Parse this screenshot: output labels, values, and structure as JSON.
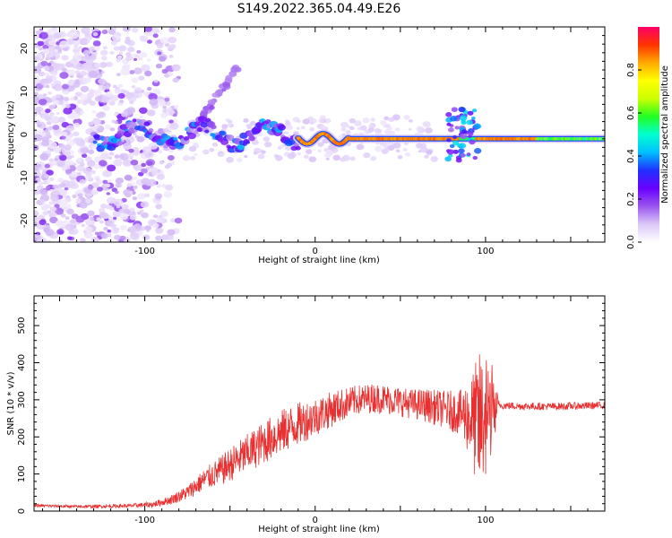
{
  "title": "S149.2022.365.04.49.E26",
  "chart_data": [
    {
      "type": "heatmap",
      "name": "spectrogram",
      "xlabel": "Height of straight line (km)",
      "ylabel": "Frequency (Hz)",
      "xlim": [
        -165,
        170
      ],
      "ylim": [
        -25,
        25
      ],
      "xticks": [
        -100,
        0,
        100
      ],
      "yticks": [
        -20,
        -10,
        0,
        10,
        20
      ],
      "xtick_labels": [
        "-100",
        "0",
        "100"
      ],
      "ytick_labels": [
        "-20",
        "-10",
        "0",
        "10",
        "20"
      ],
      "colorbar": {
        "label": "Normalized spectral amplitude",
        "range": [
          0,
          1
        ],
        "ticks": [
          0.0,
          0.2,
          0.4,
          0.6,
          0.8
        ],
        "tick_labels": [
          "0.0",
          "0.2",
          "0.4",
          "0.6",
          "0.8"
        ],
        "colors": [
          "#ffffff",
          "#dcc8f8",
          "#9a55ee",
          "#6a00ff",
          "#2030ff",
          "#00bfff",
          "#00ffd0",
          "#22ff22",
          "#ccff00",
          "#ffff00",
          "#ffaa00",
          "#ff3300",
          "#ff0066"
        ]
      },
      "features": [
        {
          "label": "carrier line",
          "x_range": [
            -10,
            170
          ],
          "frequency_hz": -1,
          "amplitude": 0.9
        },
        {
          "label": "scintillation region",
          "x_range": [
            -165,
            -20
          ],
          "frequency_spread_hz": [
            -25,
            25
          ]
        }
      ]
    },
    {
      "type": "line",
      "name": "snr",
      "xlabel": "Height of straight line (km)",
      "ylabel": "SNR (10 * v/v)",
      "xlim": [
        -165,
        170
      ],
      "ylim": [
        0,
        580
      ],
      "xticks": [
        -100,
        0,
        100
      ],
      "yticks": [
        0,
        100,
        200,
        300,
        400,
        500
      ],
      "xtick_labels": [
        "-100",
        "0",
        "100"
      ],
      "ytick_labels": [
        "0",
        "100",
        "200",
        "300",
        "400",
        "500"
      ],
      "color": "#e83030",
      "x": [
        -165,
        -140,
        -110,
        -95,
        -85,
        -75,
        -65,
        -55,
        -45,
        -35,
        -25,
        -15,
        -5,
        5,
        15,
        25,
        35,
        45,
        55,
        65,
        75,
        85,
        92,
        96,
        100,
        104,
        108,
        120,
        140,
        160,
        170
      ],
      "values": [
        15,
        12,
        14,
        18,
        30,
        50,
        85,
        110,
        140,
        170,
        200,
        225,
        245,
        265,
        285,
        300,
        305,
        300,
        290,
        285,
        275,
        265,
        250,
        230,
        260,
        280,
        285,
        283,
        282,
        284,
        285
      ],
      "noise_amplitude": [
        4,
        4,
        5,
        8,
        12,
        20,
        30,
        40,
        50,
        55,
        60,
        60,
        55,
        50,
        45,
        40,
        40,
        40,
        40,
        45,
        50,
        60,
        120,
        200,
        180,
        120,
        10,
        10,
        10,
        10,
        10
      ]
    }
  ]
}
